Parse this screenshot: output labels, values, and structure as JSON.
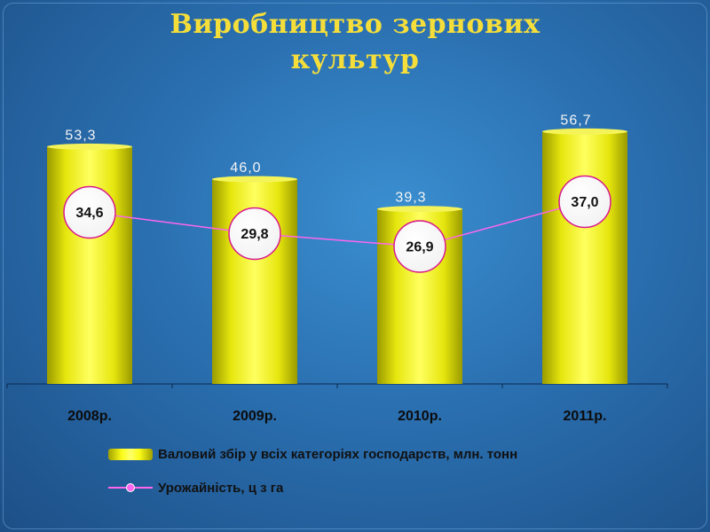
{
  "title_line1": "Виробництво зернових",
  "title_line2": "культур",
  "chart_data": {
    "type": "bar",
    "categories": [
      "2008р.",
      "2009р.",
      "2010р.",
      "2011р."
    ],
    "series": [
      {
        "name": "Валовий збір у всіх категоріях господарств, млн. тонн",
        "chart_type": "bar",
        "values": [
          53.3,
          46.0,
          39.3,
          56.7
        ],
        "labels": [
          "53,3",
          "46,0",
          "39,3",
          "56,7"
        ],
        "color": "#f2f21a"
      },
      {
        "name": "Урожайність, ц з га",
        "chart_type": "line",
        "values": [
          34.6,
          29.8,
          26.9,
          37.0
        ],
        "labels": [
          "34,6",
          "29,8",
          "26,9",
          "37,0"
        ],
        "color": "#ff66ee"
      }
    ],
    "grid": false,
    "legend_position": "bottom"
  }
}
